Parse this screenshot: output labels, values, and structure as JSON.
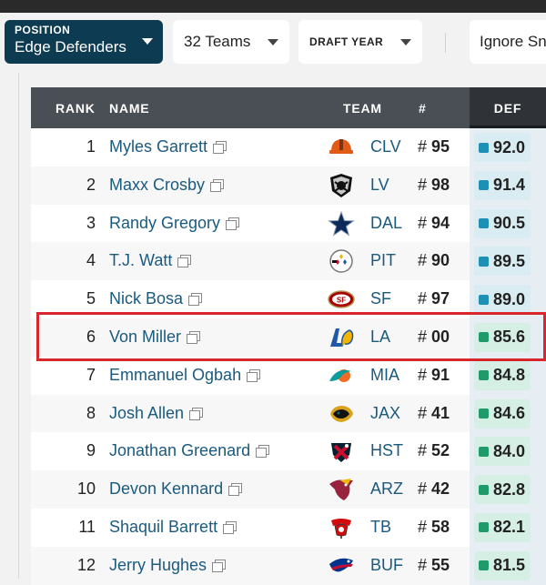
{
  "filters": {
    "position_label": "POSITION",
    "position_value": "Edge Defenders",
    "teams_value": "32 Teams",
    "draft_year_label": "DRAFT YEAR",
    "ignore_label": "Ignore Sn"
  },
  "table": {
    "headers": {
      "rank": "RANK",
      "name": "NAME",
      "team": "TEAM",
      "number": "#",
      "def": "DEF"
    },
    "rows": [
      {
        "rank": "1",
        "name": "Myles Garrett",
        "team": "CLV",
        "number": "95",
        "def": "92.0",
        "tier": "blue",
        "logo": "browns-logo"
      },
      {
        "rank": "2",
        "name": "Maxx Crosby",
        "team": "LV",
        "number": "98",
        "def": "91.4",
        "tier": "blue",
        "logo": "raiders-logo"
      },
      {
        "rank": "3",
        "name": "Randy Gregory",
        "team": "DAL",
        "number": "94",
        "def": "90.5",
        "tier": "blue",
        "logo": "cowboys-logo"
      },
      {
        "rank": "4",
        "name": "T.J. Watt",
        "team": "PIT",
        "number": "90",
        "def": "89.5",
        "tier": "blue",
        "logo": "steelers-logo"
      },
      {
        "rank": "5",
        "name": "Nick Bosa",
        "team": "SF",
        "number": "97",
        "def": "89.0",
        "tier": "blue",
        "logo": "49ers-logo"
      },
      {
        "rank": "6",
        "name": "Von Miller",
        "team": "LA",
        "number": "00",
        "def": "85.6",
        "tier": "green",
        "logo": "rams-logo"
      },
      {
        "rank": "7",
        "name": "Emmanuel Ogbah",
        "team": "MIA",
        "number": "91",
        "def": "84.8",
        "tier": "green",
        "logo": "dolphins-logo"
      },
      {
        "rank": "8",
        "name": "Josh Allen",
        "team": "JAX",
        "number": "41",
        "def": "84.6",
        "tier": "green",
        "logo": "jaguars-logo"
      },
      {
        "rank": "9",
        "name": "Jonathan Greenard",
        "team": "HST",
        "number": "52",
        "def": "84.0",
        "tier": "green",
        "logo": "texans-logo"
      },
      {
        "rank": "10",
        "name": "Devon Kennard",
        "team": "ARZ",
        "number": "42",
        "def": "82.8",
        "tier": "green",
        "logo": "cardinals-logo"
      },
      {
        "rank": "11",
        "name": "Shaquil Barrett",
        "team": "TB",
        "number": "58",
        "def": "82.1",
        "tier": "green",
        "logo": "buccaneers-logo"
      },
      {
        "rank": "12",
        "name": "Jerry Hughes",
        "team": "BUF",
        "number": "55",
        "def": "81.5",
        "tier": "green",
        "logo": "bills-logo"
      }
    ]
  },
  "colors": {
    "position_bg": "#0d3b52",
    "link": "#1a5a7e",
    "grade_blue": "#1e8fb5",
    "grade_green": "#1f9b6b",
    "highlight": "#d9262c"
  }
}
